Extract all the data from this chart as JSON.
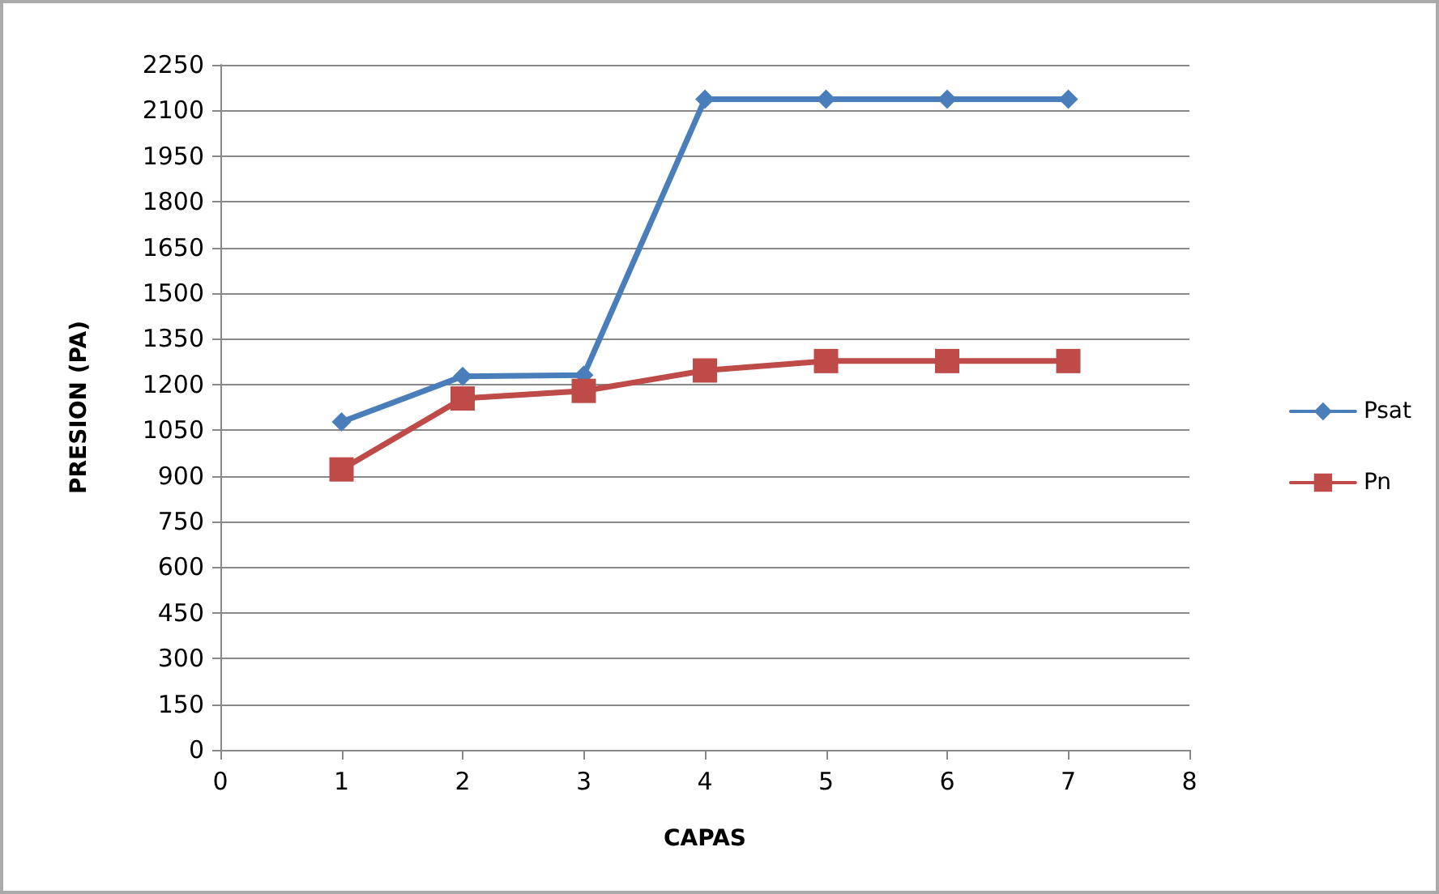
{
  "chart_data": {
    "type": "line",
    "xlabel": "CAPAS",
    "ylabel": "PRESION (PA)",
    "x": [
      1,
      2,
      3,
      4,
      5,
      6,
      7
    ],
    "series": [
      {
        "name": "Psat",
        "color": "#4a7ebb",
        "marker": "diamond",
        "values": [
          1077,
          1227,
          1231,
          2137,
          2137,
          2137,
          2137
        ]
      },
      {
        "name": "Pn",
        "color": "#be4b48",
        "marker": "square",
        "values": [
          921,
          1154,
          1179,
          1246,
          1277,
          1277,
          1277
        ]
      }
    ],
    "xlim": [
      0,
      8
    ],
    "xticks": [
      0,
      1,
      2,
      3,
      4,
      5,
      6,
      7,
      8
    ],
    "ylim": [
      0,
      2250
    ],
    "yticks": [
      0,
      150,
      300,
      450,
      600,
      750,
      900,
      1050,
      1200,
      1350,
      1500,
      1650,
      1800,
      1950,
      2100,
      2250
    ],
    "grid": "y",
    "legend": "right",
    "line_style": "solid"
  }
}
